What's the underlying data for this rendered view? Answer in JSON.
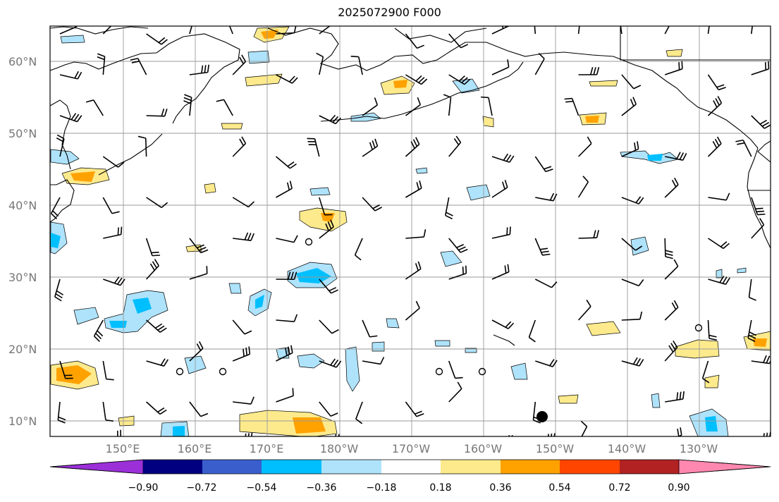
{
  "title": "2025072900 F000",
  "lat_labels": [
    "60°N",
    "50°N",
    "40°N",
    "30°N",
    "20°N",
    "10°N"
  ],
  "lon_labels": [
    "150°E",
    "160°E",
    "170°E",
    "180°W",
    "170°W",
    "160°W",
    "150°W",
    "140°W",
    "130°W"
  ],
  "colorbar": {
    "ticks": [
      "−0.90",
      "−0.72",
      "−0.54",
      "−0.36",
      "−0.18",
      "0.18",
      "0.36",
      "0.54",
      "0.72",
      "0.90"
    ],
    "colors": [
      "#9b30d9",
      "#000080",
      "#3a5fcd",
      "#00bfff",
      "#aee3fb",
      "#ffffff",
      "#fdea8c",
      "#ffa200",
      "#ff4500",
      "#b22222",
      "#ff88b0"
    ]
  },
  "map_extent": {
    "lon_min": 140,
    "lon_max": 240,
    "lat_min": 8,
    "lat_max": 65
  }
}
